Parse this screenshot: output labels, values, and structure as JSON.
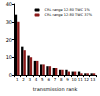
{
  "chart_data": {
    "type": "bar",
    "x_label": "transmission rank",
    "categories": [
      "1",
      "2",
      "3",
      "4",
      "5",
      "6",
      "7",
      "8",
      "9",
      "10",
      "11",
      "12",
      "13"
    ],
    "series": [
      {
        "name": "CRL range 12-80 TWC 1%",
        "color": "#000000",
        "values": [
          34,
          16,
          11,
          8,
          6,
          5,
          4,
          3,
          3,
          2,
          2,
          1,
          1
        ]
      },
      {
        "name": "CRL range 12-80 TWC 37%",
        "color": "#8b1a1a",
        "values": [
          30,
          14,
          10,
          8,
          6,
          5,
          4,
          3,
          2,
          2,
          1,
          1,
          1
        ]
      }
    ],
    "ylim": [
      0,
      40
    ],
    "yticks": [
      0,
      10,
      20,
      30,
      40
    ],
    "legend": "top-right",
    "grid": false
  }
}
